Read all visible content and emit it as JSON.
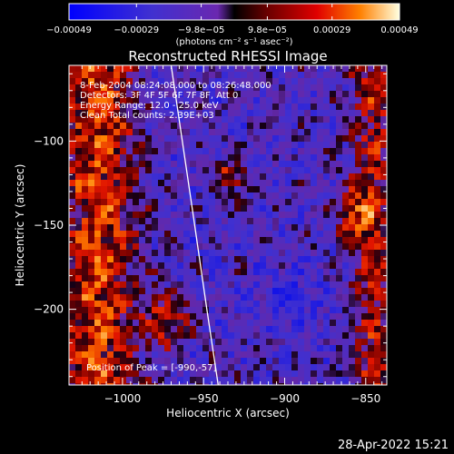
{
  "colorbar": {
    "ticks": [
      "−0.00049",
      "−0.00029",
      "−9.8e−05",
      "9.8e−05",
      "0.00029",
      "0.00049"
    ],
    "tick_values": [
      -0.00049,
      -0.00029,
      -9.8e-05,
      9.8e-05,
      0.00029,
      0.00049
    ],
    "range": [
      -0.00049,
      0.00049
    ],
    "unit_label": "(photons cm⁻² s⁻¹ asec⁻²)"
  },
  "footer": {
    "timestamp": "28-Apr-2022 15:21"
  },
  "chart_data": {
    "type": "heatmap",
    "title": "Reconstructed RHESSI Image",
    "xlabel": "Heliocentric X (arcsec)",
    "ylabel": "Heliocentric Y (arcsec)",
    "xlim": [
      -1033,
      -837
    ],
    "ylim": [
      -245,
      -55
    ],
    "x_ticks": [
      -1000,
      -950,
      -900,
      -850
    ],
    "y_ticks": [
      -100,
      -150,
      -200
    ],
    "x_tick_labels": [
      "−1000",
      "−950",
      "−900",
      "−850"
    ],
    "y_tick_labels": [
      "−100",
      "−150",
      "−200"
    ],
    "info_lines": [
      "8-Feb-2004 08:24:08.000 to 08:26:48.000",
      "Detectors: 3F 4F 5F 6F 7F 8F, Att 0",
      "Energy Range: 12.0 - 25.0 keV",
      "Clean    Total counts: 2.39E+03"
    ],
    "peak_label": "Position of Peak = [-990,-57]",
    "peak_position": [
      -990,
      -57
    ],
    "limb_curve": [
      [
        -970,
        -55
      ],
      [
        -957,
        -140
      ],
      [
        -948,
        -200
      ],
      [
        -941,
        -245
      ]
    ],
    "colors": {
      "limb": "#ffffff",
      "background": "#000000"
    }
  }
}
